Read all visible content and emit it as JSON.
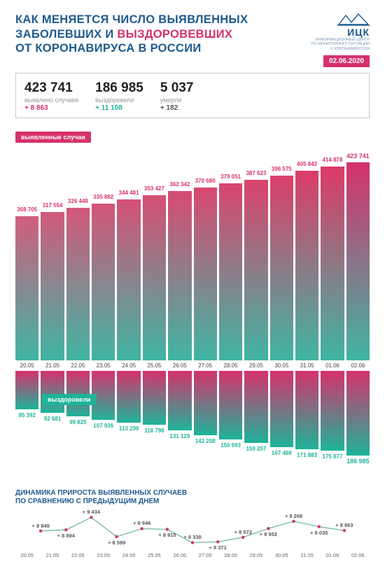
{
  "title_lines": [
    "КАК МЕНЯЕТСЯ ЧИСЛО ВЫЯВЛЕННЫХ",
    "ЗАБОЛЕВШИХ И ВЫЗДОРОВЕВШИХ",
    "ОТ КОРОНАВИРУСА В РОССИИ"
  ],
  "title_accent_color": "#d6316c",
  "title_accent_words_line2": "ВЫЗДОРОВЕВШИХ",
  "title_main_color": "#1e5a8e",
  "logo": {
    "text": "ИЦК",
    "sub": "ИНФОРМАЦИОННЫЙ ЦЕНТР\nПО МОНИТОРИНГУ СИТУАЦИИ\nС КОРОНАВИРУСОМ"
  },
  "date": "02.06.2020",
  "stats": [
    {
      "num": "423 741",
      "label": "выявлено случаев",
      "delta": "+ 8 863",
      "delta_color": "#d6316c"
    },
    {
      "num": "186 985",
      "label": "выздоровели",
      "delta": "+ 11 108",
      "delta_color": "#1fb39a"
    },
    {
      "num": "5 037",
      "label": "умерли",
      "delta": "+ 182",
      "delta_color": "#555"
    }
  ],
  "tag_cases": "выявленные случаи",
  "tag_recov": "выздоровели",
  "dates": [
    "20.05",
    "21.05",
    "22.05",
    "23.05",
    "24.05",
    "25.05",
    "26.05",
    "27.05",
    "28.05",
    "29.05",
    "30.05",
    "31.05",
    "01.06",
    "02.06"
  ],
  "cases_chart": {
    "type": "bar",
    "values": [
      308705,
      317554,
      326448,
      335882,
      344481,
      353427,
      362342,
      370680,
      379051,
      387623,
      396575,
      405843,
      414878,
      423741
    ],
    "labels": [
      "308 705",
      "317 554",
      "326 448",
      "335 882",
      "344 481",
      "353 427",
      "362 342",
      "370 680",
      "379 051",
      "387 623",
      "396 575",
      "405 843",
      "414 878",
      "423 741"
    ],
    "label_colors": [
      "#d6316c",
      "#d6316c",
      "#d6316c",
      "#d6316c",
      "#d6316c",
      "#d6316c",
      "#d6316c",
      "#d6316c",
      "#d6316c",
      "#d6316c",
      "#d6316c",
      "#d6316c",
      "#d6316c",
      "#d6316c"
    ],
    "last_label_color": "#d6316c",
    "max_value": 450000,
    "bar_top_color": [
      "#d15d7e",
      "#d35a7c",
      "#d4577a",
      "#d55478",
      "#d65176",
      "#d74e74",
      "#d84b72",
      "#d94870",
      "#da456e",
      "#db426c",
      "#dc3f6a",
      "#dd3c68",
      "#de3966",
      "#d6316c"
    ],
    "bar_bot_color": "#3fb5a3"
  },
  "recov_chart": {
    "type": "bar",
    "values": [
      85392,
      92681,
      99825,
      107936,
      113299,
      118798,
      131129,
      142208,
      150993,
      159257,
      167469,
      171883,
      175877,
      186985
    ],
    "labels": [
      "85 392",
      "92 681",
      "99 825",
      "107 936",
      "113 299",
      "118 798",
      "131 129",
      "142 208",
      "150 993",
      "159 257",
      "167 469",
      "171 883",
      "175 877",
      "186 985"
    ],
    "max_value": 200000,
    "bar_top_color": "#d6316c",
    "bar_bot_color": "#1fb39a"
  },
  "linechart": {
    "title": "ДИНАМИКА ПРИРОСТА ВЫЯВЛЕННЫХ СЛУЧАЕВ\nПО СРАВНЕНИЮ С ПРЕДЫДУЩИМ ДНЕМ",
    "values": [
      8849,
      8894,
      9434,
      8599,
      8946,
      8915,
      8338,
      8371,
      8572,
      8952,
      9268,
      9035,
      8863
    ],
    "labels": [
      "+ 8 849",
      "+ 8 894",
      "+ 9 434",
      "+ 8 599",
      "+ 8 946",
      "+ 8 915",
      "+ 8 338",
      "+ 8 371",
      "+ 8 572",
      "+ 8 952",
      "+ 9 268",
      "+ 9 035",
      "+ 8 863"
    ],
    "label_pos": [
      "above",
      "below",
      "above",
      "below",
      "above",
      "below",
      "above",
      "below",
      "above",
      "below",
      "above",
      "below",
      "above"
    ],
    "line_color": "#6fb8a8",
    "marker_color": "#d6316c",
    "ylim": [
      8200,
      9600
    ]
  }
}
